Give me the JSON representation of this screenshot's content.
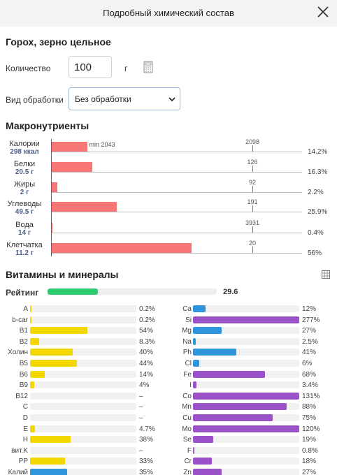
{
  "header": {
    "title": "Подробный химический состав"
  },
  "food": {
    "name": "Горох, зерно цельное"
  },
  "quantity": {
    "label": "Количество",
    "value": "100",
    "unit": "г"
  },
  "processing": {
    "label": "Вид обработки",
    "selected": "Без обработки"
  },
  "macro": {
    "title": "Макронутриенты",
    "min_label": "min 2043",
    "rows": [
      {
        "name": "Калории",
        "value": "298 ккал",
        "max": "2098",
        "pct": "14.2%",
        "fraction": 0.142
      },
      {
        "name": "Белки",
        "value": "20.5 г",
        "max": "126",
        "pct": "16.3%",
        "fraction": 0.163
      },
      {
        "name": "Жиры",
        "value": "2 г",
        "max": "92",
        "pct": "2.2%",
        "fraction": 0.022
      },
      {
        "name": "Углеводы",
        "value": "49.5 г",
        "max": "191",
        "pct": "25.9%",
        "fraction": 0.259
      },
      {
        "name": "Вода",
        "value": "14 г",
        "max": "3931",
        "pct": "0.4%",
        "fraction": 0.004
      },
      {
        "name": "Клетчатка",
        "value": "11.2 г",
        "max": "20",
        "pct": "56%",
        "fraction": 0.56
      }
    ]
  },
  "vitamins": {
    "title": "Витамины и минералы",
    "rating_label": "Рейтинг",
    "rating_value": "29.6",
    "rating_fraction": 0.296,
    "colors": {
      "vitamin": "#f2d600",
      "mineral": "#2f95dc",
      "trace": "#9b51c8",
      "rating": "#2ecc71",
      "macro": "#f87676"
    },
    "left": [
      {
        "name": "A",
        "pct": "0.2%",
        "fraction": 0.002,
        "kind": "vitamin"
      },
      {
        "name": "b-car",
        "pct": "0.2%",
        "fraction": 0.002,
        "kind": "vitamin"
      },
      {
        "name": "B1",
        "pct": "54%",
        "fraction": 0.54,
        "kind": "vitamin"
      },
      {
        "name": "B2",
        "pct": "8.3%",
        "fraction": 0.083,
        "kind": "vitamin"
      },
      {
        "name": "Холин",
        "pct": "40%",
        "fraction": 0.4,
        "kind": "vitamin"
      },
      {
        "name": "B5",
        "pct": "44%",
        "fraction": 0.44,
        "kind": "vitamin"
      },
      {
        "name": "B6",
        "pct": "14%",
        "fraction": 0.14,
        "kind": "vitamin"
      },
      {
        "name": "B9",
        "pct": "4%",
        "fraction": 0.04,
        "kind": "vitamin"
      },
      {
        "name": "B12",
        "pct": "–",
        "fraction": 0,
        "kind": "vitamin"
      },
      {
        "name": "C",
        "pct": "–",
        "fraction": 0,
        "kind": "vitamin"
      },
      {
        "name": "D",
        "pct": "–",
        "fraction": 0,
        "kind": "vitamin"
      },
      {
        "name": "E",
        "pct": "4.7%",
        "fraction": 0.047,
        "kind": "vitamin"
      },
      {
        "name": "H",
        "pct": "38%",
        "fraction": 0.38,
        "kind": "vitamin"
      },
      {
        "name": "вит.K",
        "pct": "–",
        "fraction": 0,
        "kind": "vitamin"
      },
      {
        "name": "PP",
        "pct": "33%",
        "fraction": 0.33,
        "kind": "vitamin"
      },
      {
        "name": "Калий",
        "pct": "35%",
        "fraction": 0.35,
        "kind": "mineral"
      }
    ],
    "right": [
      {
        "name": "Ca",
        "pct": "12%",
        "fraction": 0.12,
        "kind": "mineral"
      },
      {
        "name": "Si",
        "pct": "277%",
        "fraction": 1.0,
        "kind": "trace"
      },
      {
        "name": "Mg",
        "pct": "27%",
        "fraction": 0.27,
        "kind": "mineral"
      },
      {
        "name": "Na",
        "pct": "2.5%",
        "fraction": 0.025,
        "kind": "mineral"
      },
      {
        "name": "Ph",
        "pct": "41%",
        "fraction": 0.41,
        "kind": "mineral"
      },
      {
        "name": "Cl",
        "pct": "6%",
        "fraction": 0.06,
        "kind": "mineral"
      },
      {
        "name": "Fe",
        "pct": "68%",
        "fraction": 0.68,
        "kind": "trace"
      },
      {
        "name": "I",
        "pct": "3.4%",
        "fraction": 0.034,
        "kind": "trace"
      },
      {
        "name": "Co",
        "pct": "131%",
        "fraction": 1.0,
        "kind": "trace"
      },
      {
        "name": "Mn",
        "pct": "88%",
        "fraction": 0.88,
        "kind": "trace"
      },
      {
        "name": "Cu",
        "pct": "75%",
        "fraction": 0.75,
        "kind": "trace"
      },
      {
        "name": "Mo",
        "pct": "120%",
        "fraction": 1.0,
        "kind": "trace"
      },
      {
        "name": "Se",
        "pct": "19%",
        "fraction": 0.19,
        "kind": "trace"
      },
      {
        "name": "F",
        "pct": "0.8%",
        "fraction": 0.008,
        "kind": "trace"
      },
      {
        "name": "Cr",
        "pct": "18%",
        "fraction": 0.18,
        "kind": "trace"
      },
      {
        "name": "Zn",
        "pct": "27%",
        "fraction": 0.27,
        "kind": "trace"
      }
    ]
  }
}
